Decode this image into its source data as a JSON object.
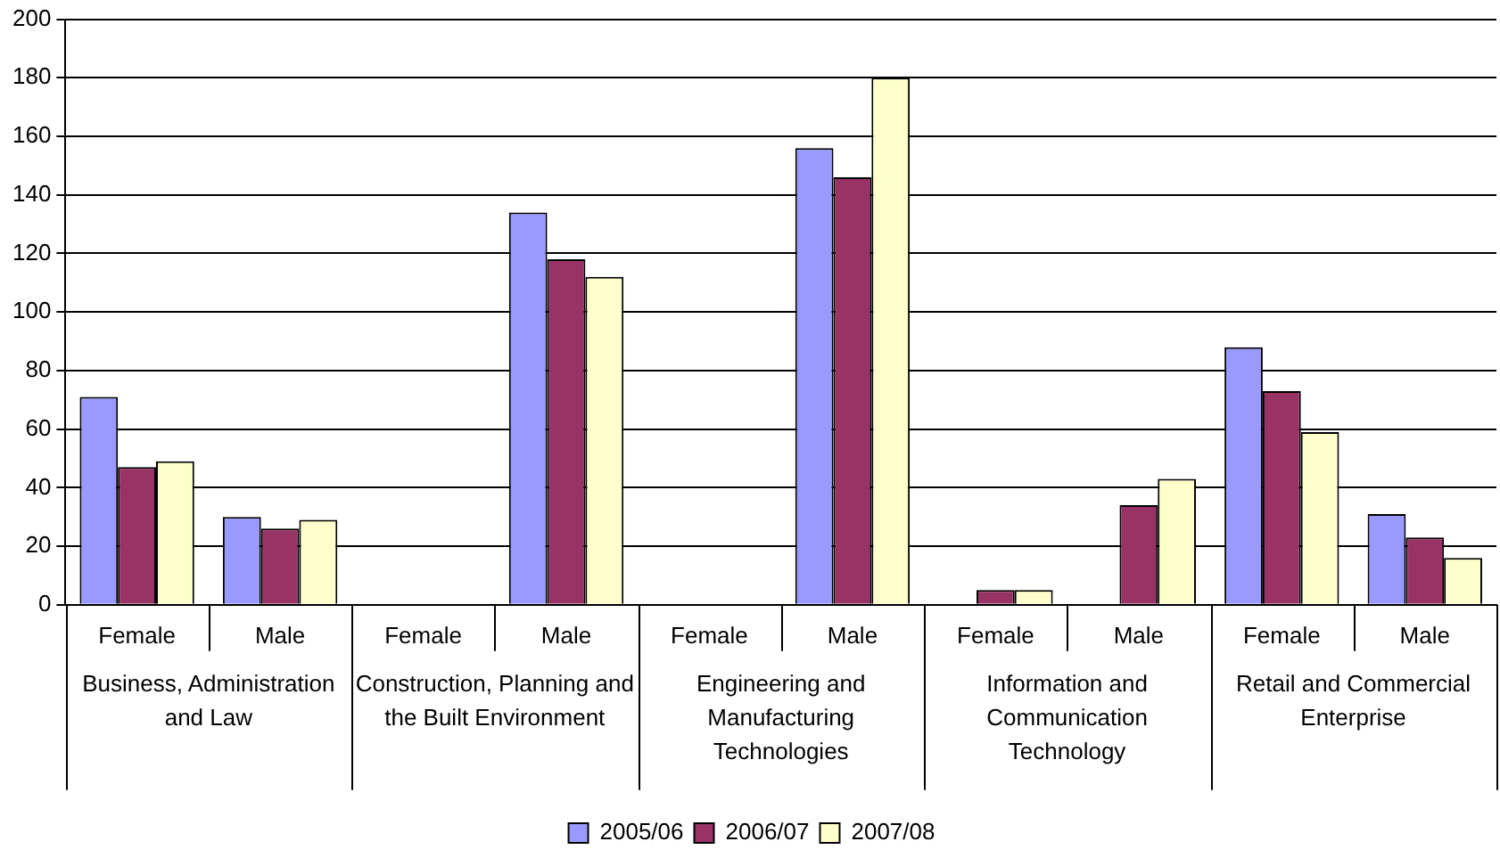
{
  "chart_data": {
    "type": "bar",
    "categories": [
      "Female",
      "Male",
      "Female",
      "Male",
      "Female",
      "Male",
      "Female",
      "Male",
      "Female",
      "Male"
    ],
    "series": [
      {
        "name": "2005/06",
        "color": "#9999ff",
        "values": [
          71,
          30,
          null,
          134,
          null,
          156,
          null,
          null,
          88,
          31
        ]
      },
      {
        "name": "2006/07",
        "color": "#993366",
        "values": [
          47,
          26,
          null,
          118,
          null,
          146,
          5,
          34,
          73,
          23
        ]
      },
      {
        "name": "2007/08",
        "color": "#ffffcc",
        "values": [
          49,
          29,
          null,
          112,
          null,
          180,
          5,
          43,
          59,
          16
        ]
      }
    ],
    "annotations": [
      "Business, Administration and Law",
      "Construction, Planning and the Built Environment",
      "Engineering and Manufacturing Technologies",
      "Information and Communication Technology",
      "Retail and Commercial Enterprise"
    ],
    "ylim": [
      0,
      200
    ],
    "yticks": [
      0,
      20,
      40,
      60,
      80,
      100,
      120,
      140,
      160,
      180,
      200
    ],
    "grid": "y",
    "legend": "bottom"
  }
}
